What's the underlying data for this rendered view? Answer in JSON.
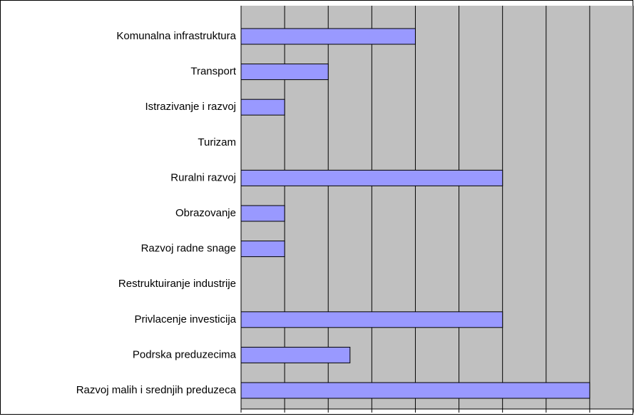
{
  "chart_data": {
    "type": "bar",
    "orientation": "horizontal",
    "categories": [
      "Komunalna infrastruktura",
      "Transport",
      "Istrazivanje i razvoj",
      "Turizam",
      "Ruralni razvoj",
      "Obrazovanje",
      "Razvoj radne snage",
      "Restruktuiranje industrije",
      "Privlacenje investicija",
      "Podrska preduzecima",
      "Razvoj malih i srednjih preduzeca"
    ],
    "values": [
      4,
      2,
      1,
      0,
      6,
      1,
      1,
      0,
      6,
      2.5,
      8
    ],
    "color": "#9999ff",
    "xlim": [
      0,
      9
    ],
    "xticks": [
      0,
      1,
      2,
      3,
      4,
      5,
      6,
      7,
      8,
      9
    ],
    "grid": true
  }
}
